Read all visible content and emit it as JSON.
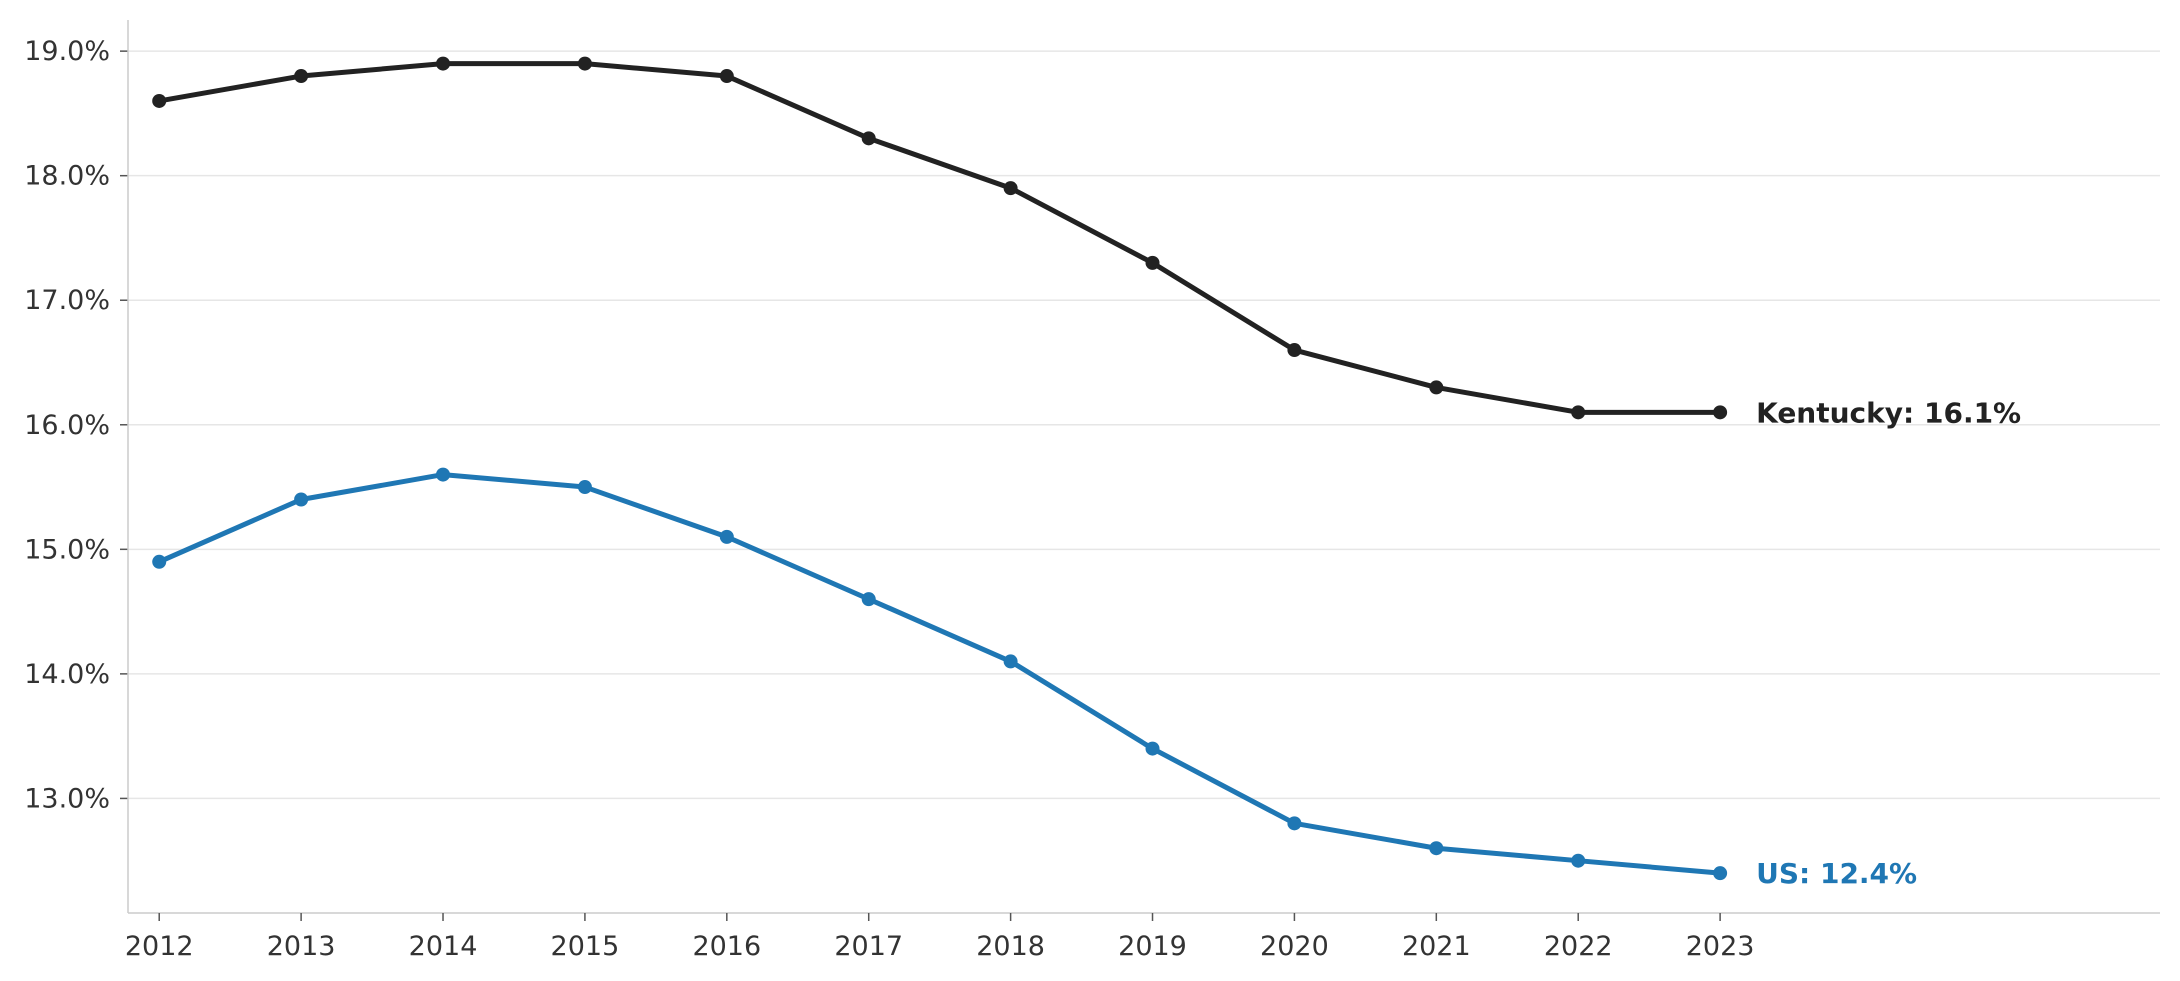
{
  "chart_data": {
    "type": "line",
    "title": "",
    "xlabel": "",
    "ylabel": "",
    "x": [
      2012,
      2013,
      2014,
      2015,
      2016,
      2017,
      2018,
      2019,
      2020,
      2021,
      2022,
      2023
    ],
    "x_tick_labels": [
      "2012",
      "2013",
      "2014",
      "2015",
      "2016",
      "2017",
      "2018",
      "2019",
      "2020",
      "2021",
      "2022",
      "2023"
    ],
    "y_ticks": [
      13.0,
      14.0,
      15.0,
      16.0,
      17.0,
      18.0,
      19.0
    ],
    "y_tick_labels": [
      "13.0%",
      "14.0%",
      "15.0%",
      "16.0%",
      "17.0%",
      "18.0%",
      "19.0%"
    ],
    "xlim": [
      2011.78,
      2026.1
    ],
    "ylim": [
      12.08,
      19.25
    ],
    "grid": "horizontal",
    "legend": "none",
    "series": [
      {
        "key": "kentucky",
        "color": "#222222",
        "values": [
          18.6,
          18.8,
          18.9,
          18.9,
          18.8,
          18.3,
          17.9,
          17.3,
          16.6,
          16.3,
          16.1,
          16.1
        ],
        "end_label": "Kentucky: 16.1%"
      },
      {
        "key": "us",
        "color": "#1f77b4",
        "values": [
          14.9,
          15.4,
          15.6,
          15.5,
          15.1,
          14.6,
          14.1,
          13.4,
          12.8,
          12.6,
          12.5,
          12.4
        ],
        "end_label": "US: 12.4%"
      }
    ]
  }
}
